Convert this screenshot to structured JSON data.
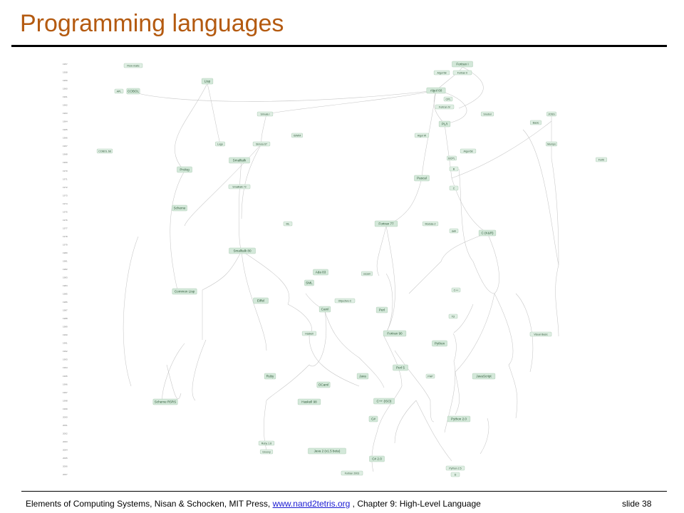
{
  "title": "Programming languages",
  "footer": {
    "prefix": "Elements of Computing Systems, Nisan & Schocken, MIT Press,",
    "link": "www.nand2tetris.org",
    "suffix": ", Chapter 9: High-Level Language",
    "slide": "slide 38"
  },
  "diagram": {
    "years": [
      "1957",
      "1958",
      "1959",
      "1960",
      "1961",
      "1962",
      "1963",
      "1964",
      "1965",
      "1966",
      "1967",
      "1968",
      "1969",
      "1970",
      "1971",
      "1972",
      "1973",
      "1974",
      "1975",
      "1976",
      "1977",
      "1978",
      "1979",
      "1980",
      "1981",
      "1982",
      "1983",
      "1984",
      "1985",
      "1986",
      "1987",
      "1988",
      "1989",
      "1990",
      "1991",
      "1992",
      "1993",
      "1994",
      "1995",
      "1996",
      "1997",
      "1998",
      "1999",
      "2000",
      "2001",
      "2002",
      "2003",
      "2004",
      "2005",
      "2006",
      "2007"
    ],
    "nodes": [
      {
        "label": "Fortran I",
        "big": true
      },
      {
        "label": "Flow-matic"
      },
      {
        "label": "Algol 58"
      },
      {
        "label": "Fortran II"
      },
      {
        "label": "APL"
      },
      {
        "label": "COBOL",
        "big": true
      },
      {
        "label": "Lisp",
        "big": true
      },
      {
        "label": "Algol 60",
        "big": true
      },
      {
        "label": "CPL"
      },
      {
        "label": "Fortran IV"
      },
      {
        "label": "Simula I"
      },
      {
        "label": "PL/I",
        "big": true
      },
      {
        "label": "Snobol"
      },
      {
        "label": "JOSS"
      },
      {
        "label": "Basic"
      },
      {
        "label": "BCPL"
      },
      {
        "label": "Algol W"
      },
      {
        "label": "Logo"
      },
      {
        "label": "Simula 67"
      },
      {
        "label": "Mumps"
      },
      {
        "label": "B"
      },
      {
        "label": "COBOL 68"
      },
      {
        "label": "ISWIM"
      },
      {
        "label": "Algol 68"
      },
      {
        "label": "Forth"
      },
      {
        "label": "Smalltalk",
        "big": true
      },
      {
        "label": "Prolog",
        "big": true
      },
      {
        "label": "Pascal",
        "big": true
      },
      {
        "label": "C"
      },
      {
        "label": "Smalltalk 72"
      },
      {
        "label": "Scheme",
        "big": true
      },
      {
        "label": "ML"
      },
      {
        "label": "Fortran 77",
        "big": true
      },
      {
        "label": "Modula-2"
      },
      {
        "label": "awk"
      },
      {
        "label": "C (K&R)",
        "big": true
      },
      {
        "label": "Smalltalk 80",
        "big": true
      },
      {
        "label": "Ada 83",
        "big": true
      },
      {
        "label": "occam"
      },
      {
        "label": "Objective-C"
      },
      {
        "label": "C++"
      },
      {
        "label": "Common Lisp",
        "big": true
      },
      {
        "label": "SML",
        "big": true
      },
      {
        "label": "Eiffel",
        "big": true
      },
      {
        "label": "Perl",
        "big": true
      },
      {
        "label": "Caml",
        "big": true
      },
      {
        "label": "Tcl"
      },
      {
        "label": "Haskell"
      },
      {
        "label": "Fortran 90",
        "big": true
      },
      {
        "label": "Python",
        "big": true
      },
      {
        "label": "Visual Basic"
      },
      {
        "label": "Ruby",
        "big": true
      },
      {
        "label": "Perl 5",
        "big": true
      },
      {
        "label": "Java",
        "big": true
      },
      {
        "label": "JavaScript",
        "big": true
      },
      {
        "label": "OCaml",
        "big": true
      },
      {
        "label": "PHP"
      },
      {
        "label": "Scheme R5RS",
        "big": true
      },
      {
        "label": "Haskell 98",
        "big": true
      },
      {
        "label": "C++ (ISO)",
        "big": true
      },
      {
        "label": "Python 2.0",
        "big": true
      },
      {
        "label": "C#",
        "big": true
      },
      {
        "label": "Java 2 (v1.5 beta)",
        "big": true
      },
      {
        "label": "C# 2.0",
        "big": true
      },
      {
        "label": "Fortran 2003"
      },
      {
        "label": "Python 2.5"
      },
      {
        "label": "Ruby 1.8"
      },
      {
        "label": "Groovy"
      },
      {
        "label": "D"
      }
    ]
  }
}
